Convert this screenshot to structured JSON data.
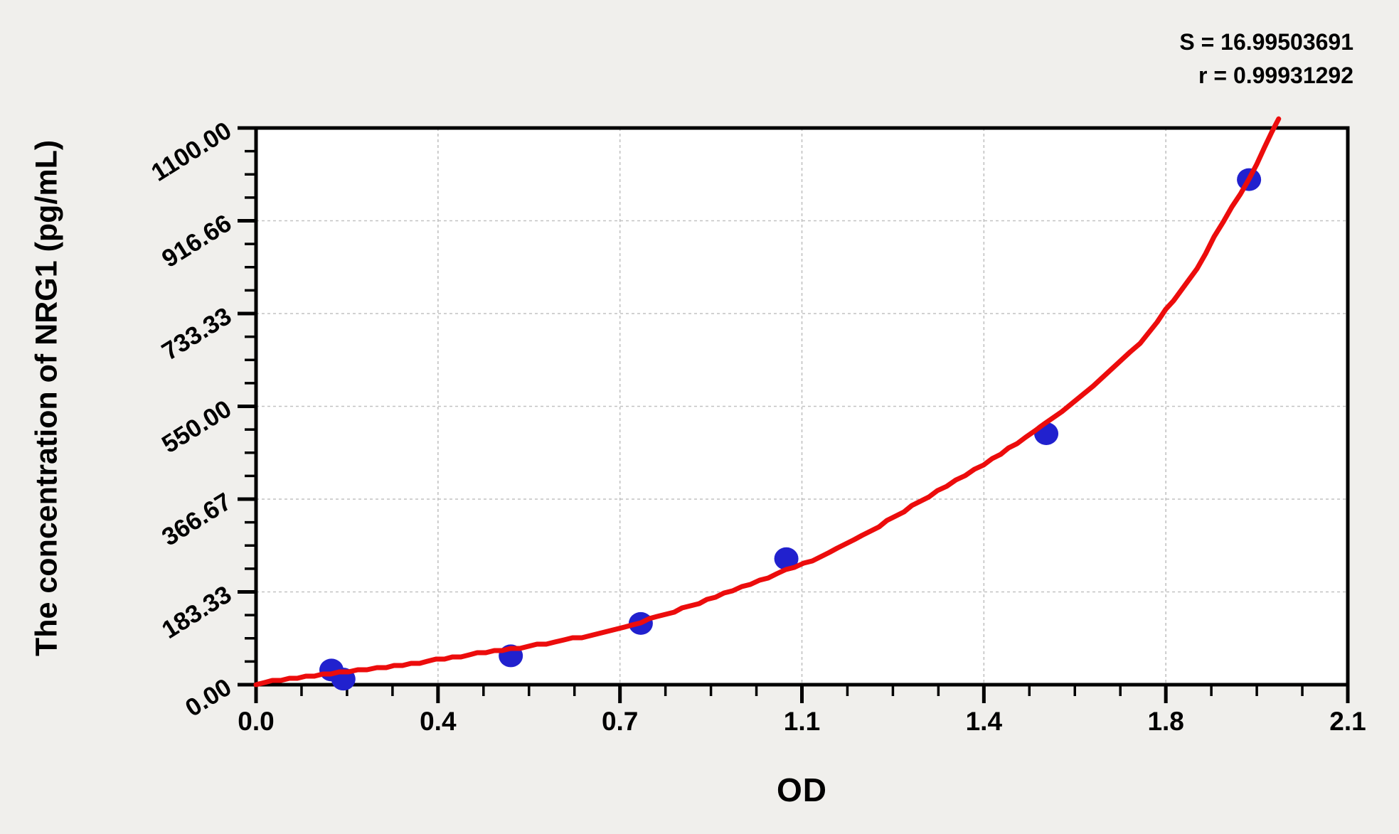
{
  "page": {
    "background": "#f0efec",
    "plot_background": "#ffffff"
  },
  "stats": {
    "s_line": "S = 16.99503691",
    "r_line": "r = 0.99931292"
  },
  "chart_data": {
    "type": "scatter",
    "title": "",
    "xlabel": "OD",
    "ylabel": "The concentration of NRG1 (pg/mL)",
    "x_axis": {
      "min": 0,
      "max": 2.1,
      "tick_values": [
        0,
        0.35,
        0.7,
        1.05,
        1.4,
        1.75,
        2.1
      ],
      "tick_labels": [
        "0.0",
        "0.4",
        "0.7",
        "1.1",
        "1.4",
        "1.8",
        "2.1"
      ],
      "minor_divisions": 4
    },
    "y_axis": {
      "min": 0,
      "max": 1100,
      "tick_values": [
        0,
        183.333,
        366.667,
        550,
        733.333,
        916.667,
        1100
      ],
      "tick_labels": [
        "0.00",
        "183.33",
        "366.67",
        "550.00",
        "733.33",
        "916.66",
        "1100.00"
      ],
      "minor_divisions": 4
    },
    "grid": "dashed-at-major-ticks",
    "legend": "none",
    "annotations": [
      "S = 16.99503691",
      "r = 0.99931292"
    ],
    "series": [
      {
        "name": "standards",
        "kind": "points",
        "color": "#2121ce",
        "points": [
          {
            "od": 0.145,
            "conc": 29
          },
          {
            "od": 0.168,
            "conc": 11
          },
          {
            "od": 0.49,
            "conc": 57
          },
          {
            "od": 0.74,
            "conc": 121
          },
          {
            "od": 1.02,
            "conc": 249
          },
          {
            "od": 1.52,
            "conc": 496
          },
          {
            "od": 1.91,
            "conc": 998
          }
        ]
      },
      {
        "name": "fitted-standard-curve",
        "kind": "curve",
        "color": "#ec0c0c",
        "samples": [
          [
            0.0,
            2
          ],
          [
            0.08,
            14
          ],
          [
            0.16,
            24
          ],
          [
            0.25,
            35
          ],
          [
            0.33,
            46
          ],
          [
            0.41,
            59
          ],
          [
            0.49,
            71
          ],
          [
            0.575,
            84
          ],
          [
            0.66,
            101
          ],
          [
            0.74,
            124
          ],
          [
            0.82,
            150
          ],
          [
            0.9,
            180
          ],
          [
            0.985,
            212
          ],
          [
            1.07,
            246
          ],
          [
            1.15,
            285
          ],
          [
            1.23,
            332
          ],
          [
            1.31,
            383
          ],
          [
            1.4,
            436
          ],
          [
            1.48,
            487
          ],
          [
            1.55,
            540
          ],
          [
            1.61,
            590
          ],
          [
            1.7,
            673
          ],
          [
            1.75,
            740
          ],
          [
            1.81,
            820
          ],
          [
            1.86,
            915
          ],
          [
            1.91,
            997
          ],
          [
            1.94,
            1062
          ],
          [
            1.967,
            1118
          ]
        ]
      }
    ],
    "colors": {
      "curve": "#ec0c0c",
      "points": "#2121ce",
      "grid": "#c2c2c2",
      "frame": "#000000"
    }
  }
}
